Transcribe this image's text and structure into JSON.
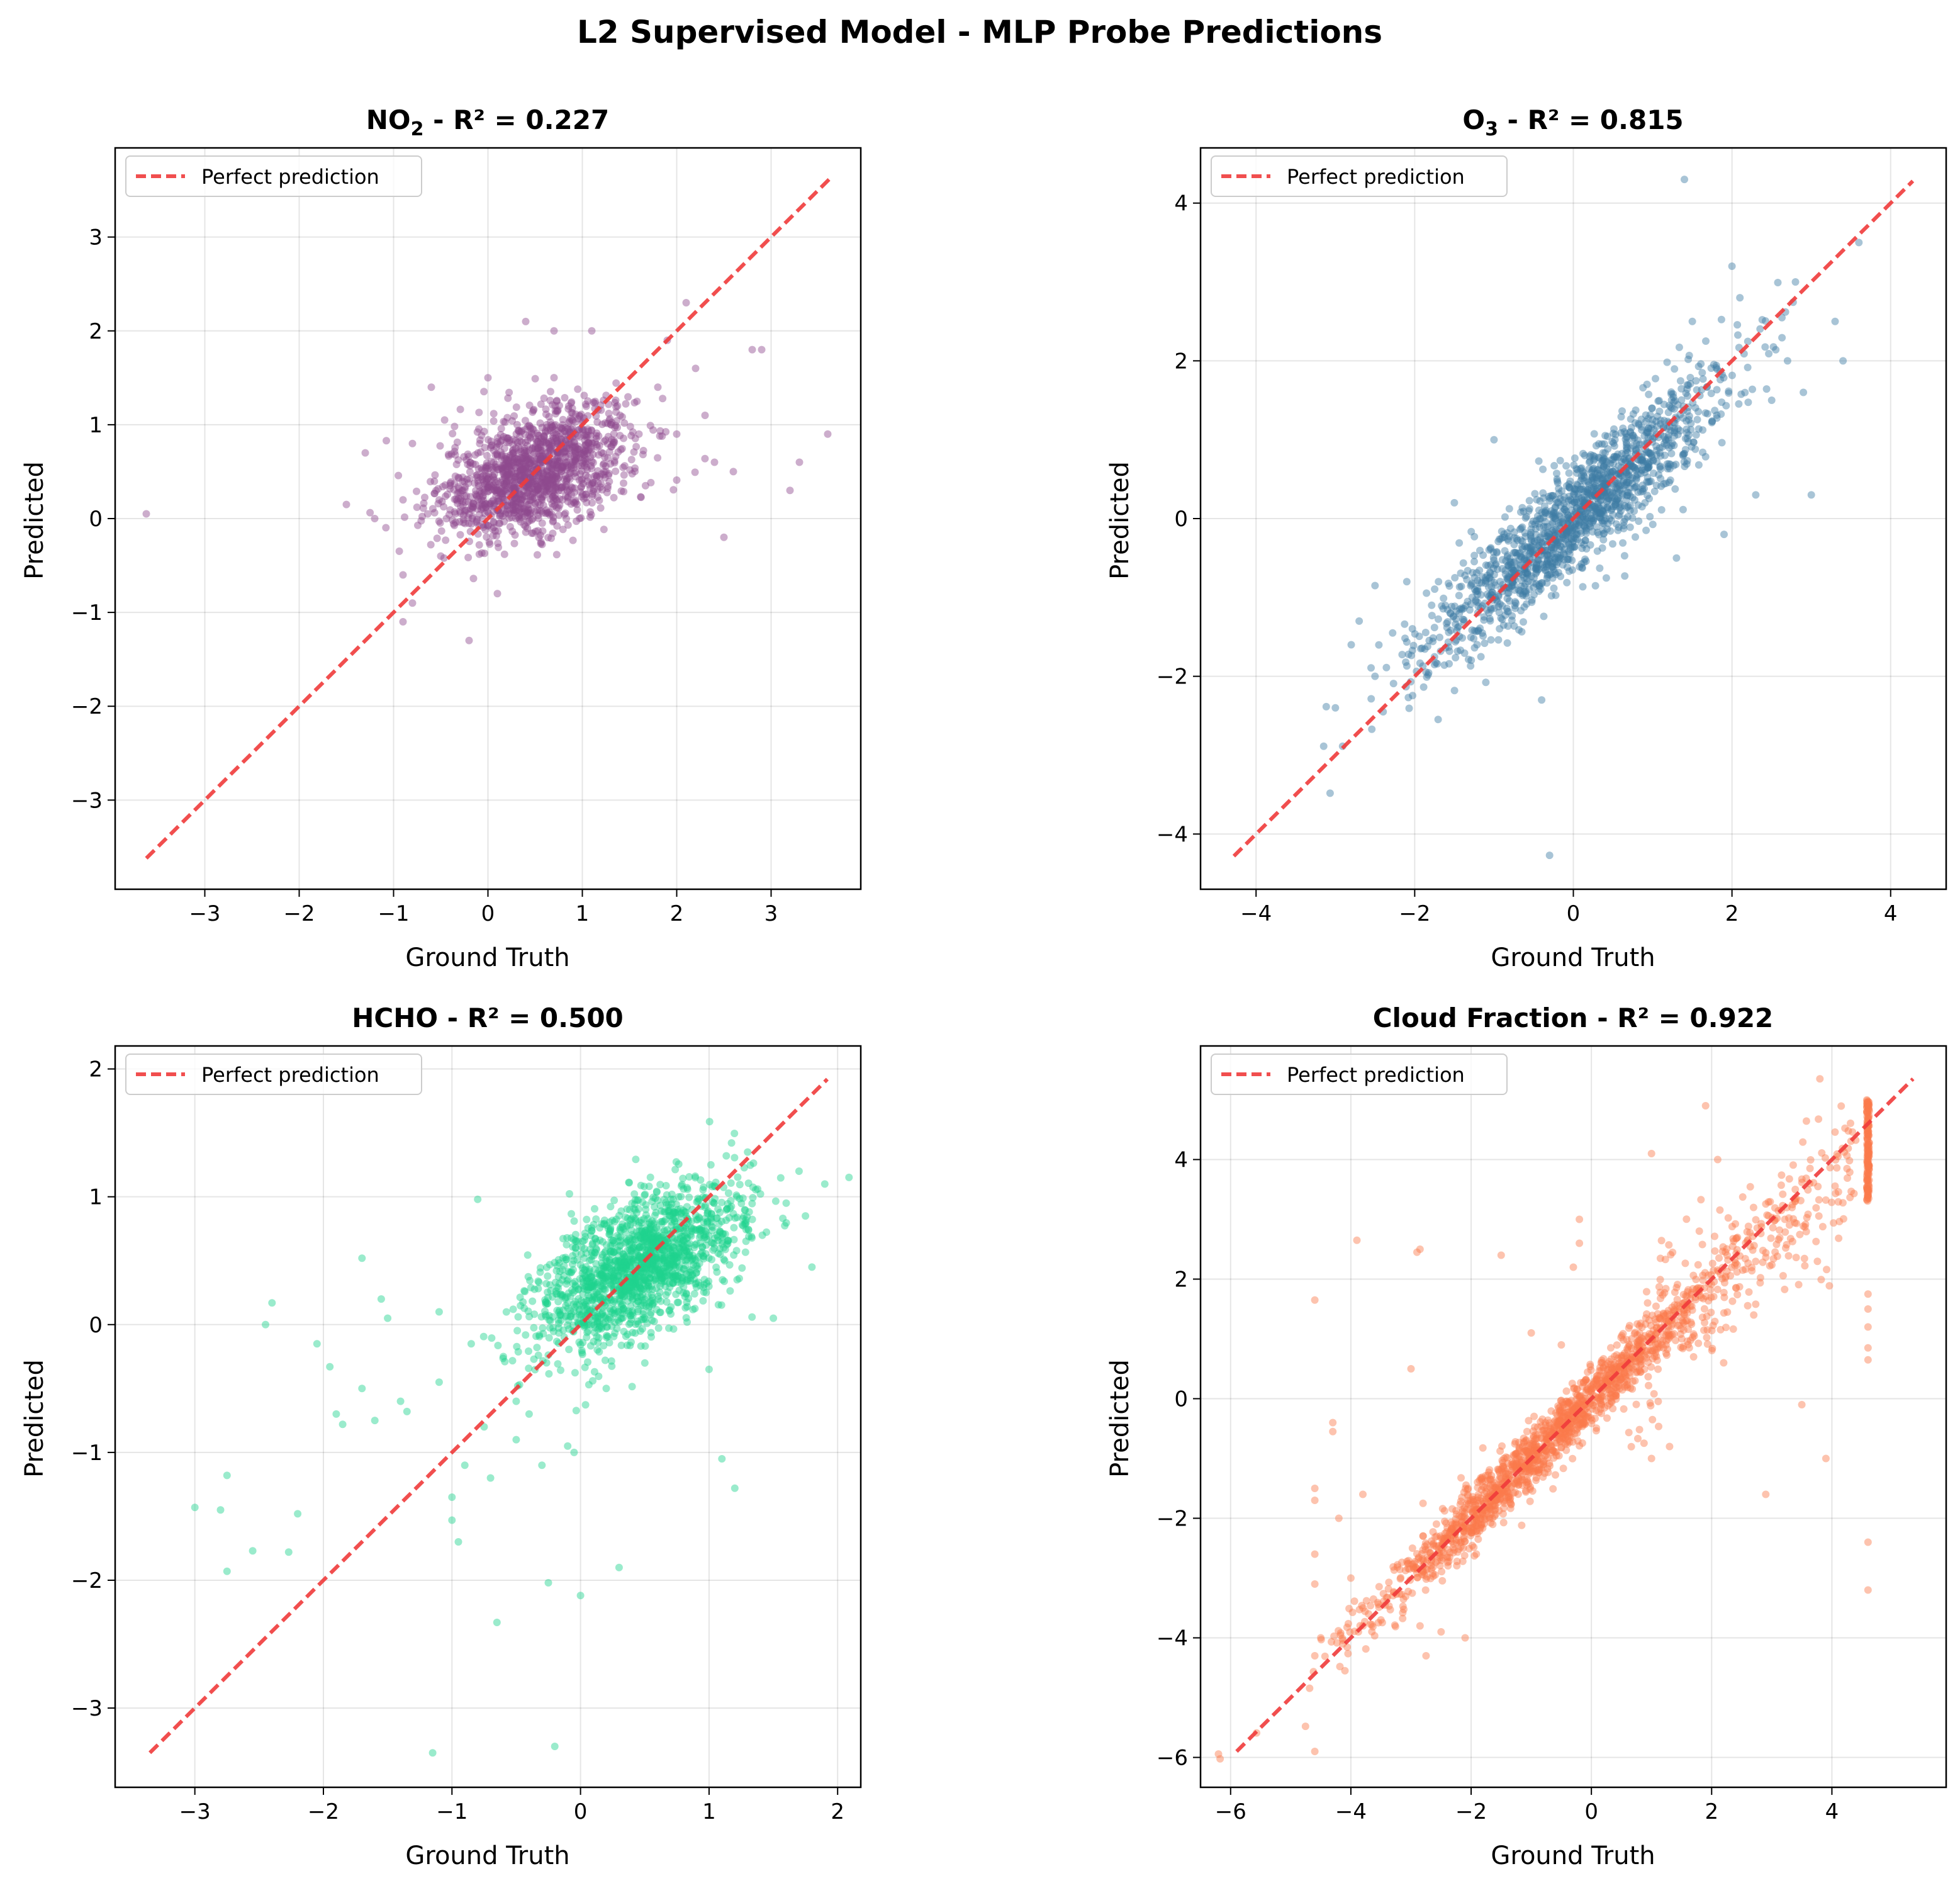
{
  "figure": {
    "title": "L2 Supervised Model - MLP Probe Predictions"
  },
  "chart_data": [
    {
      "type": "scatter",
      "title_main": "NO",
      "title_sub": "2",
      "title_rest": " - R² = 0.227",
      "r2": 0.227,
      "xlabel": "Ground Truth",
      "ylabel": "Predicted",
      "xlim": [
        -3.95,
        3.95
      ],
      "ylim": [
        -3.95,
        3.95
      ],
      "xticks": [
        -3,
        -2,
        -1,
        0,
        1,
        2,
        3
      ],
      "yticks": [
        -3,
        -2,
        -1,
        0,
        1,
        2,
        3
      ],
      "tick_labels_x": [
        "−3",
        "−2",
        "−1",
        "0",
        "1",
        "2",
        "3"
      ],
      "tick_labels_y": [
        "−3",
        "−2",
        "−1",
        "0",
        "1",
        "2",
        "3"
      ],
      "color": "#8e4a8f",
      "legend": "Perfect prediction",
      "legend_loc": "upper-left",
      "grid": true,
      "perfect_line": [
        -3.62,
        3.62
      ],
      "cluster": {
        "mean_x": 0.5,
        "mean_y": 0.5,
        "sd_x": 0.5,
        "sd_y": 0.35,
        "corr": 0.45,
        "n": 1400
      },
      "outliers": [
        [
          -3.62,
          0.05
        ],
        [
          3.6,
          0.9
        ],
        [
          3.3,
          0.6
        ],
        [
          3.2,
          0.3
        ],
        [
          2.8,
          1.8
        ],
        [
          2.9,
          1.8
        ],
        [
          2.6,
          0.5
        ],
        [
          -1.3,
          0.7
        ],
        [
          -1.2,
          0.0
        ],
        [
          -0.9,
          0.2
        ],
        [
          -0.8,
          -0.9
        ],
        [
          -0.9,
          -1.1
        ],
        [
          -0.2,
          -1.3
        ],
        [
          -1.5,
          0.15
        ],
        [
          -0.6,
          1.4
        ],
        [
          -0.8,
          0.8
        ],
        [
          0.1,
          -0.8
        ],
        [
          0.4,
          2.1
        ],
        [
          1.1,
          2.0
        ],
        [
          2.1,
          2.3
        ],
        [
          1.4,
          1.1
        ],
        [
          2.5,
          -0.2
        ],
        [
          1.9,
          1.9
        ],
        [
          2.2,
          1.6
        ],
        [
          -0.9,
          -0.6
        ],
        [
          0.7,
          2.0
        ],
        [
          2.0,
          0.9
        ],
        [
          2.4,
          0.6
        ],
        [
          1.6,
          0.9
        ],
        [
          -0.5,
          -0.4
        ],
        [
          0.0,
          1.5
        ],
        [
          2.3,
          1.1
        ],
        [
          1.8,
          1.4
        ]
      ]
    },
    {
      "type": "scatter",
      "title_main": "O",
      "title_sub": "3",
      "title_rest": " - R² = 0.815",
      "r2": 0.815,
      "xlabel": "Ground Truth",
      "ylabel": "Predicted",
      "xlim": [
        -4.7,
        4.7
      ],
      "ylim": [
        -4.7,
        4.7
      ],
      "xticks": [
        -4,
        -2,
        0,
        2,
        4
      ],
      "yticks": [
        -4,
        -2,
        0,
        2,
        4
      ],
      "tick_labels_x": [
        "−4",
        "−2",
        "0",
        "2",
        "4"
      ],
      "tick_labels_y": [
        "−4",
        "−2",
        "0",
        "2",
        "4"
      ],
      "color": "#3f7ca3",
      "legend": "Perfect prediction",
      "legend_loc": "upper-left",
      "grid": true,
      "perfect_line": [
        -4.28,
        4.28
      ],
      "cluster": {
        "mean_x": 0.0,
        "mean_y": 0.0,
        "sd_x": 0.95,
        "sd_y": 0.9,
        "corr": 0.92,
        "n": 1500
      },
      "outliers": [
        [
          1.4,
          4.3
        ],
        [
          -0.3,
          -4.27
        ],
        [
          3.6,
          3.5
        ],
        [
          -3.0,
          -2.4
        ],
        [
          -2.5,
          -2.0
        ],
        [
          -2.8,
          -1.6
        ],
        [
          -2.7,
          -1.3
        ],
        [
          -2.5,
          -0.85
        ],
        [
          -1.0,
          1.0
        ],
        [
          3.4,
          2.0
        ],
        [
          3.0,
          0.3
        ],
        [
          3.3,
          2.5
        ],
        [
          2.8,
          3.0
        ],
        [
          -0.4,
          -2.3
        ],
        [
          1.9,
          -0.2
        ],
        [
          2.1,
          2.8
        ],
        [
          2.0,
          3.2
        ],
        [
          -1.7,
          -0.8
        ],
        [
          2.7,
          2.0
        ],
        [
          2.9,
          1.6
        ],
        [
          1.5,
          2.5
        ],
        [
          -2.1,
          -0.8
        ],
        [
          2.5,
          1.5
        ],
        [
          1.3,
          -0.5
        ],
        [
          2.3,
          0.3
        ],
        [
          -1.5,
          0.2
        ]
      ]
    },
    {
      "type": "scatter",
      "title_main": "HCHO",
      "title_sub": "",
      "title_rest": " - R² = 0.500",
      "r2": 0.5,
      "xlabel": "Ground Truth",
      "ylabel": "Predicted",
      "xlim": [
        -3.62,
        2.18
      ],
      "ylim": [
        -3.62,
        2.18
      ],
      "xticks": [
        -3,
        -2,
        -1,
        0,
        1,
        2
      ],
      "yticks": [
        -3,
        -2,
        -1,
        0,
        1,
        2
      ],
      "tick_labels_x": [
        "−3",
        "−2",
        "−1",
        "0",
        "1",
        "2"
      ],
      "tick_labels_y": [
        "−3",
        "−2",
        "−1",
        "0",
        "1",
        "2"
      ],
      "color": "#1fd38d",
      "legend": "Perfect prediction",
      "legend_loc": "upper-left",
      "grid": true,
      "perfect_line": [
        -3.35,
        1.92
      ],
      "cluster": {
        "mean_x": 0.45,
        "mean_y": 0.45,
        "sd_x": 0.4,
        "sd_y": 0.33,
        "corr": 0.6,
        "n": 1600
      },
      "outliers": [
        [
          -3.0,
          -1.43
        ],
        [
          -2.8,
          -1.45
        ],
        [
          -2.75,
          -1.93
        ],
        [
          -2.75,
          -1.18
        ],
        [
          -2.55,
          -1.77
        ],
        [
          -2.27,
          -1.78
        ],
        [
          -2.2,
          -1.48
        ],
        [
          -2.4,
          0.17
        ],
        [
          -2.45,
          0.0
        ],
        [
          -2.05,
          -0.15
        ],
        [
          -1.95,
          -0.33
        ],
        [
          -1.9,
          -0.7
        ],
        [
          -1.85,
          -0.78
        ],
        [
          -1.7,
          -0.5
        ],
        [
          -1.7,
          0.52
        ],
        [
          -1.6,
          -0.75
        ],
        [
          -1.55,
          0.2
        ],
        [
          -1.5,
          0.05
        ],
        [
          -1.4,
          -0.6
        ],
        [
          -1.35,
          -0.68
        ],
        [
          -1.15,
          -3.35
        ],
        [
          -0.2,
          -3.3
        ],
        [
          -0.25,
          -2.02
        ],
        [
          -0.65,
          -2.33
        ],
        [
          0.0,
          -2.12
        ],
        [
          0.3,
          -1.9
        ],
        [
          -1.0,
          -1.53
        ],
        [
          -0.95,
          -1.7
        ],
        [
          -1.1,
          -0.45
        ],
        [
          -1.1,
          0.1
        ],
        [
          -0.8,
          0.98
        ],
        [
          1.1,
          -1.05
        ],
        [
          1.2,
          -1.28
        ],
        [
          1.0,
          -0.35
        ],
        [
          1.75,
          0.85
        ],
        [
          1.8,
          0.45
        ],
        [
          1.9,
          1.1
        ],
        [
          1.7,
          1.2
        ],
        [
          -0.7,
          -1.2
        ],
        [
          -0.5,
          -0.9
        ],
        [
          -0.3,
          -1.1
        ],
        [
          -0.1,
          -0.95
        ],
        [
          -0.05,
          -1.0
        ],
        [
          -0.6,
          -0.25
        ],
        [
          -0.9,
          -1.1
        ],
        [
          -0.75,
          -0.8
        ],
        [
          -0.85,
          -0.15
        ],
        [
          -0.5,
          -0.6
        ],
        [
          -0.4,
          -0.7
        ],
        [
          1.5,
          0.05
        ],
        [
          1.6,
          0.95
        ],
        [
          1.3,
          1.35
        ],
        [
          -1.0,
          -1.35
        ],
        [
          0.2,
          -0.5
        ],
        [
          0.5,
          -0.3
        ]
      ]
    },
    {
      "type": "scatter",
      "title_main": "Cloud Fraction",
      "title_sub": "",
      "title_rest": " - R² = 0.922",
      "r2": 0.922,
      "xlabel": "Ground Truth",
      "ylabel": "Predicted",
      "xlim": [
        -6.5,
        5.9
      ],
      "ylim": [
        -6.5,
        5.9
      ],
      "xticks": [
        -6,
        -4,
        -2,
        0,
        2,
        4
      ],
      "yticks": [
        -6,
        -4,
        -2,
        0,
        2,
        4
      ],
      "tick_labels_x": [
        "−6",
        "−4",
        "−2",
        "0",
        "2",
        "4"
      ],
      "tick_labels_y": [
        "−6",
        "−4",
        "−2",
        "0",
        "2",
        "4"
      ],
      "color": "#fb7a4c",
      "legend": "Perfect prediction",
      "legend_loc": "upper-left",
      "grid": true,
      "perfect_line": [
        -5.9,
        5.35
      ],
      "cluster": {
        "mean_x": -0.8,
        "mean_y": -0.8,
        "sd_x": 1.5,
        "sd_y": 1.5,
        "corr": 0.985,
        "n": 1500
      },
      "cluster2": {
        "x_min": 0.6,
        "x_max": 4.4,
        "sd_y": 0.6,
        "n": 260
      },
      "column": {
        "x": 4.6,
        "y_min": 3.3,
        "y_max": 5.0,
        "n": 150
      },
      "outliers": [
        [
          -4.6,
          -5.9
        ],
        [
          -4.6,
          1.65
        ],
        [
          -4.6,
          -1.5
        ],
        [
          -4.6,
          -1.7
        ],
        [
          -4.6,
          -2.6
        ],
        [
          -4.6,
          -3.1
        ],
        [
          -4.6,
          -4.3
        ],
        [
          -4.5,
          -4.0
        ],
        [
          -4.3,
          -0.4
        ],
        [
          -4.3,
          -0.55
        ],
        [
          -4.2,
          -2.0
        ],
        [
          -4.0,
          -3.0
        ],
        [
          -3.8,
          -1.6
        ],
        [
          -3.9,
          2.65
        ],
        [
          -3.5,
          -3.7
        ],
        [
          -2.85,
          2.5
        ],
        [
          -2.9,
          2.45
        ],
        [
          -2.85,
          -3.8
        ],
        [
          -2.75,
          -4.3
        ],
        [
          -2.5,
          -3.9
        ],
        [
          -2.1,
          -4.0
        ],
        [
          -2.8,
          -1.75
        ],
        [
          -3.0,
          0.5
        ],
        [
          -1.5,
          2.4
        ],
        [
          -1.9,
          -1.7
        ],
        [
          -1.0,
          1.1
        ],
        [
          -0.5,
          0.9
        ],
        [
          -0.2,
          2.6
        ],
        [
          -0.2,
          3.0
        ],
        [
          -0.3,
          2.2
        ],
        [
          3.8,
          5.35
        ],
        [
          4.6,
          1.75
        ],
        [
          4.6,
          1.5
        ],
        [
          4.6,
          0.85
        ],
        [
          4.6,
          0.65
        ],
        [
          4.6,
          1.2
        ],
        [
          4.6,
          -2.4
        ],
        [
          4.6,
          -3.2
        ],
        [
          2.9,
          -1.6
        ],
        [
          3.5,
          -0.1
        ],
        [
          3.9,
          -1.0
        ],
        [
          1.0,
          -1.0
        ],
        [
          1.3,
          -0.8
        ],
        [
          1.7,
          0.7
        ],
        [
          2.7,
          1.4
        ],
        [
          2.2,
          0.6
        ],
        [
          1.9,
          4.9
        ],
        [
          1.0,
          4.1
        ],
        [
          2.1,
          4.0
        ]
      ]
    }
  ]
}
